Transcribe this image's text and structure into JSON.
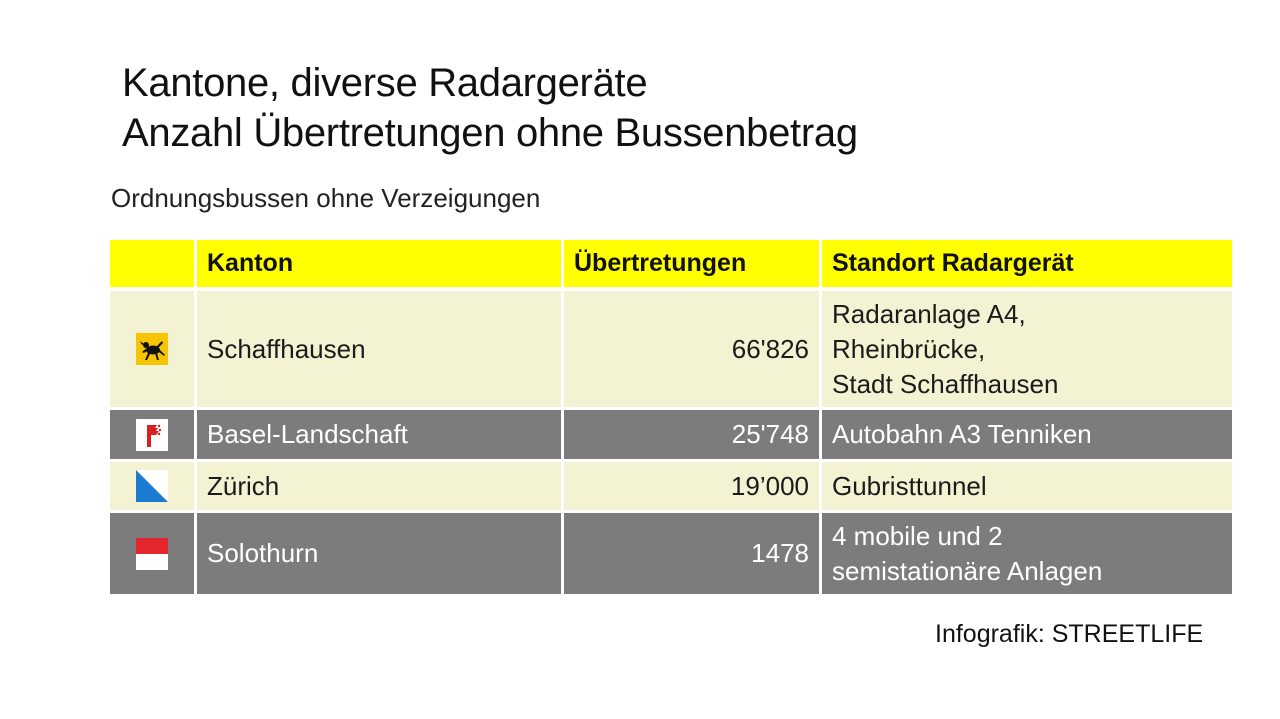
{
  "title": {
    "line1": "Kantone, diverse Radargeräte",
    "line2": "Anzahl Übertretungen ohne Bussenbetrag"
  },
  "subtitle": "Ordnungsbussen ohne Verzeigungen",
  "table": {
    "headers": {
      "flag": "",
      "canton": "Kanton",
      "violations": "Übertretungen",
      "location": "Standort Radargerät"
    },
    "rows": [
      {
        "flag_icon": "schaffhausen-flag-icon",
        "canton": "Schaffhausen",
        "violations": "66'826",
        "location_lines": [
          "Radaranlage A4,",
          "Rheinbrücke,",
          "Stadt Schaffhausen"
        ]
      },
      {
        "flag_icon": "basel-landschaft-flag-icon",
        "canton": "Basel-Landschaft",
        "violations": "25'748",
        "location_lines": [
          "Autobahn A3 Tenniken"
        ]
      },
      {
        "flag_icon": "zurich-flag-icon",
        "canton": "Zürich",
        "violations": "19’000",
        "location_lines": [
          "Gubristtunnel"
        ]
      },
      {
        "flag_icon": "solothurn-flag-icon",
        "canton": "Solothurn",
        "violations": "1478",
        "location_lines": [
          "4 mobile und 2",
          "semistationäre Anlagen"
        ]
      }
    ]
  },
  "source": "Infografik: STREETLIFE",
  "colors": {
    "header_bg": "#ffff00",
    "light_row_bg": "#f3f2d3",
    "dark_row_bg": "#7c7c7c"
  }
}
